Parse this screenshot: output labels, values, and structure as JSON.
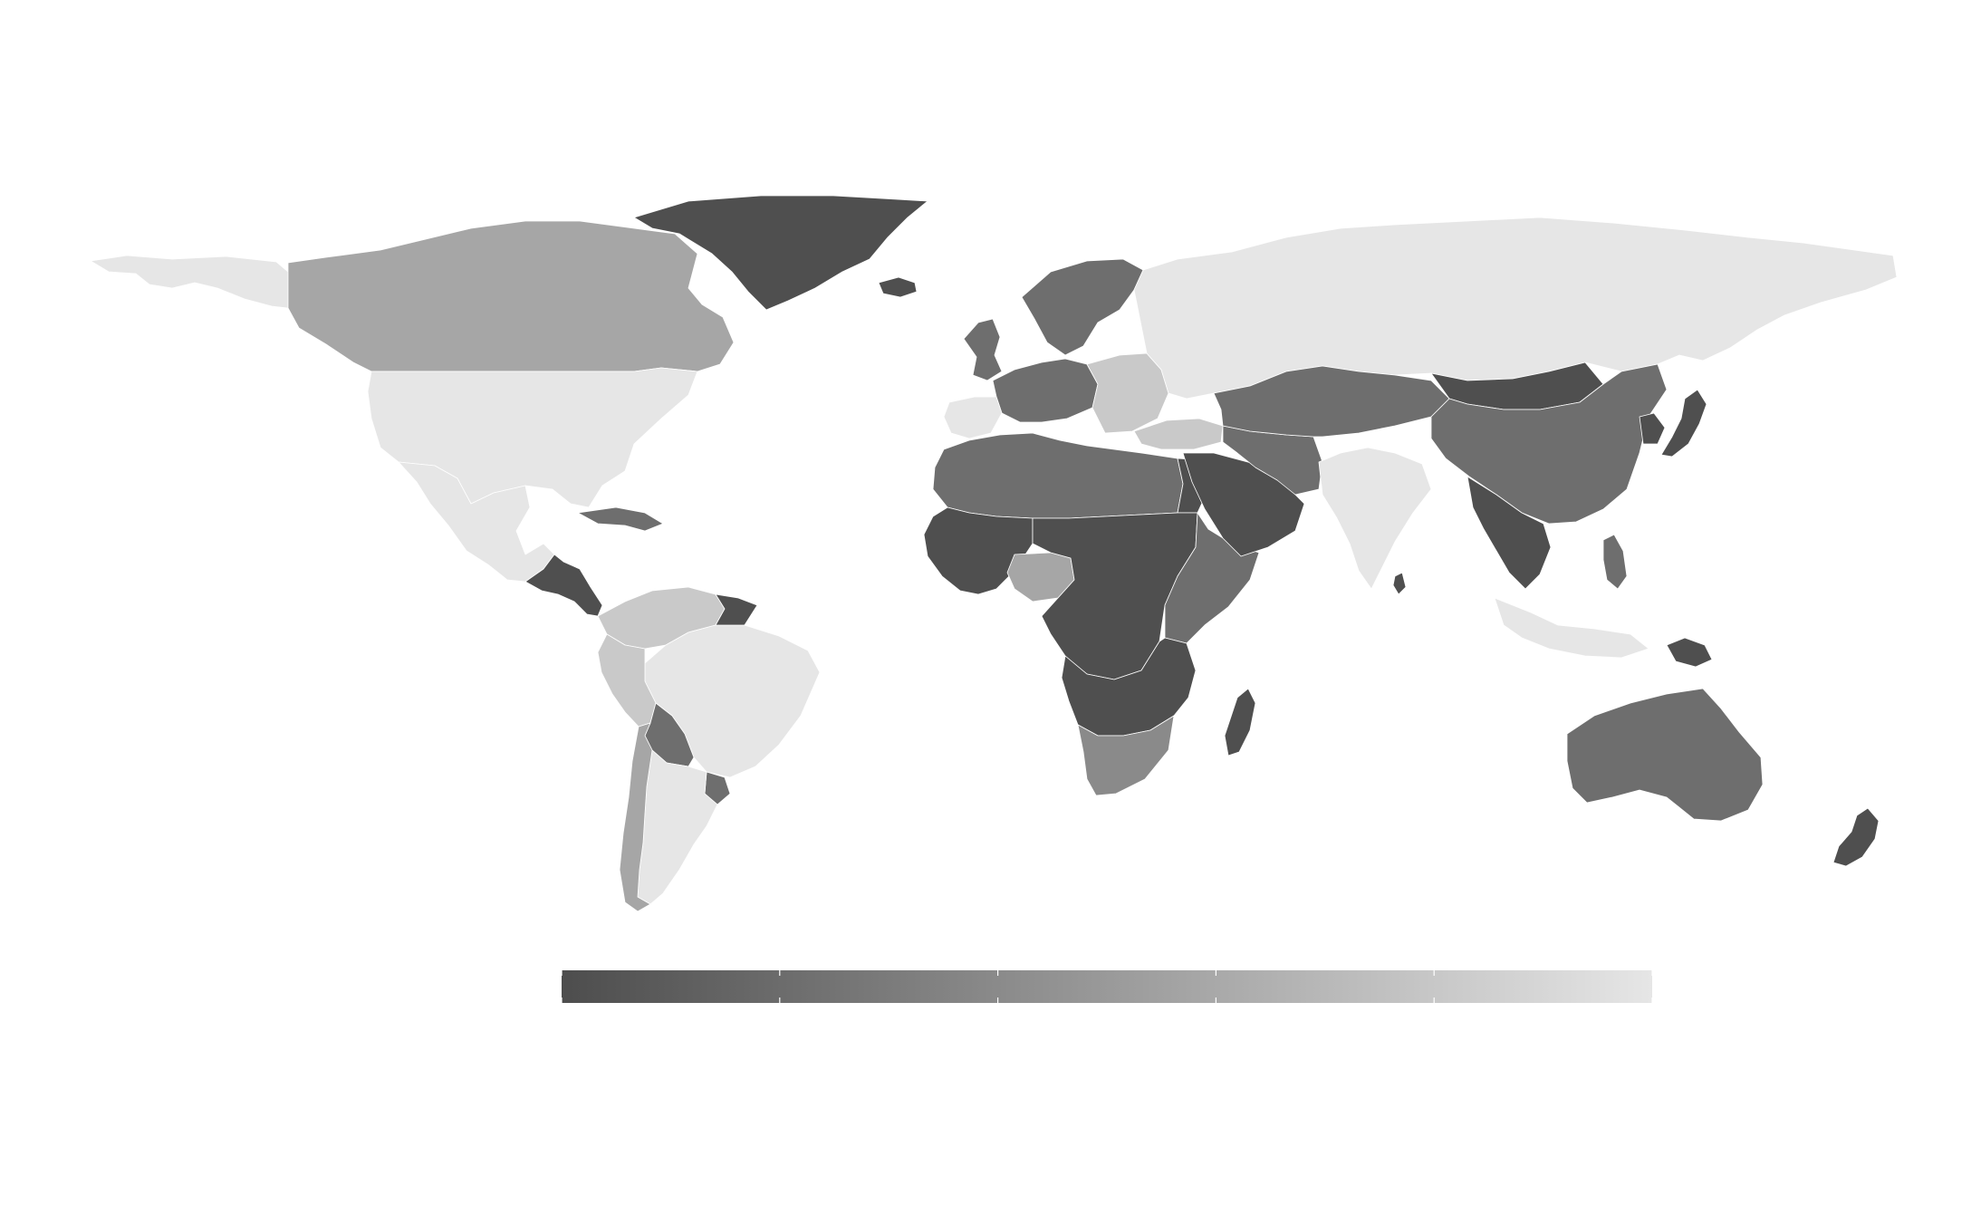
{
  "map": {
    "projection": "equirectangular",
    "color_scale": {
      "type": "sequential-grayscale",
      "low_color": "#4d4d4d",
      "high_color": "#e6e6e6",
      "tick_count": 6,
      "tick_labels": []
    },
    "shade_colors": {
      "s1": "#4f4f4f",
      "s2": "#6e6e6e",
      "s3": "#8a8a8a",
      "s4": "#a6a6a6",
      "s5": "#c9c9c9",
      "s6": "#e6e6e6"
    },
    "regions": [
      {
        "id": "greenland",
        "shade": "s1"
      },
      {
        "id": "canada",
        "shade": "s4"
      },
      {
        "id": "alaska",
        "shade": "s6"
      },
      {
        "id": "usa",
        "shade": "s6"
      },
      {
        "id": "mexico",
        "shade": "s6"
      },
      {
        "id": "central-america",
        "shade": "s1"
      },
      {
        "id": "caribbean",
        "shade": "s2"
      },
      {
        "id": "brazil",
        "shade": "s6"
      },
      {
        "id": "colombia-venezuela",
        "shade": "s5"
      },
      {
        "id": "guianas",
        "shade": "s1"
      },
      {
        "id": "peru",
        "shade": "s5"
      },
      {
        "id": "bolivia",
        "shade": "s2"
      },
      {
        "id": "chile",
        "shade": "s4"
      },
      {
        "id": "argentina",
        "shade": "s6"
      },
      {
        "id": "uruguay",
        "shade": "s2"
      },
      {
        "id": "iceland",
        "shade": "s1"
      },
      {
        "id": "scandinavia",
        "shade": "s2"
      },
      {
        "id": "united-kingdom",
        "shade": "s2"
      },
      {
        "id": "western-europe",
        "shade": "s2"
      },
      {
        "id": "iberia",
        "shade": "s6"
      },
      {
        "id": "eastern-europe",
        "shade": "s5"
      },
      {
        "id": "russia",
        "shade": "s6"
      },
      {
        "id": "turkey",
        "shade": "s5"
      },
      {
        "id": "north-africa",
        "shade": "s2"
      },
      {
        "id": "egypt",
        "shade": "s1"
      },
      {
        "id": "west-africa",
        "shade": "s1"
      },
      {
        "id": "nigeria",
        "shade": "s4"
      },
      {
        "id": "central-africa",
        "shade": "s1"
      },
      {
        "id": "east-africa",
        "shade": "s2"
      },
      {
        "id": "southern-africa",
        "shade": "s1"
      },
      {
        "id": "south-africa",
        "shade": "s3"
      },
      {
        "id": "madagascar",
        "shade": "s1"
      },
      {
        "id": "arabia",
        "shade": "s1"
      },
      {
        "id": "iran",
        "shade": "s2"
      },
      {
        "id": "central-asia",
        "shade": "s2"
      },
      {
        "id": "mongolia",
        "shade": "s1"
      },
      {
        "id": "china",
        "shade": "s2"
      },
      {
        "id": "india",
        "shade": "s6"
      },
      {
        "id": "sri-lanka",
        "shade": "s1"
      },
      {
        "id": "southeast-asia",
        "shade": "s1"
      },
      {
        "id": "korea",
        "shade": "s1"
      },
      {
        "id": "japan",
        "shade": "s1"
      },
      {
        "id": "philippines",
        "shade": "s2"
      },
      {
        "id": "indonesia",
        "shade": "s6"
      },
      {
        "id": "papua-new-guinea",
        "shade": "s1"
      },
      {
        "id": "australia",
        "shade": "s2"
      },
      {
        "id": "new-zealand",
        "shade": "s1"
      }
    ]
  }
}
